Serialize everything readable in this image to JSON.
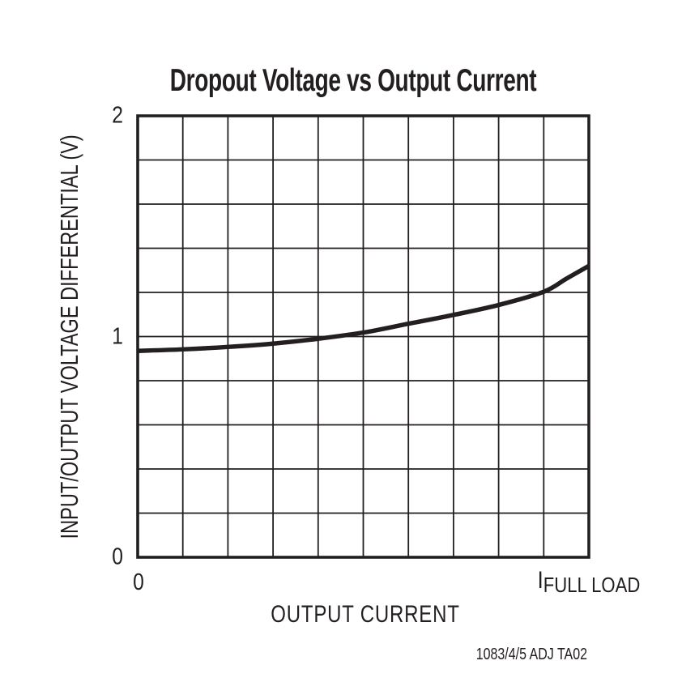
{
  "footer_code": "1083/4/5 ADJ TA02",
  "colors": {
    "ink": "#231f20",
    "background": "#ffffff"
  },
  "chart_data": {
    "type": "line",
    "title": "Dropout Voltage vs Output Current",
    "xlabel": "OUTPUT CURRENT",
    "ylabel": "INPUT/OUTPUT VOLTAGE DIFFERENTIAL (V)",
    "xlim": [
      0,
      1
    ],
    "ylim": [
      0,
      2
    ],
    "grid": {
      "on": true,
      "x_divisions": 10,
      "y_divisions": 10
    },
    "yticks": [
      {
        "value": 0,
        "label": "0"
      },
      {
        "value": 1,
        "label": "1"
      },
      {
        "value": 2,
        "label": "2"
      }
    ],
    "xticks": [
      {
        "value": 0,
        "label": "0"
      },
      {
        "value": 1,
        "label": "I",
        "subscript": "FULL LOAD"
      }
    ],
    "legend": null,
    "series": [
      {
        "name": "dropout-voltage",
        "x": [
          0,
          0.1,
          0.2,
          0.3,
          0.4,
          0.5,
          0.6,
          0.7,
          0.8,
          0.9,
          0.95,
          1.0
        ],
        "y": [
          0.935,
          0.942,
          0.953,
          0.968,
          0.99,
          1.018,
          1.058,
          1.098,
          1.143,
          1.203,
          1.262,
          1.32
        ]
      }
    ]
  }
}
